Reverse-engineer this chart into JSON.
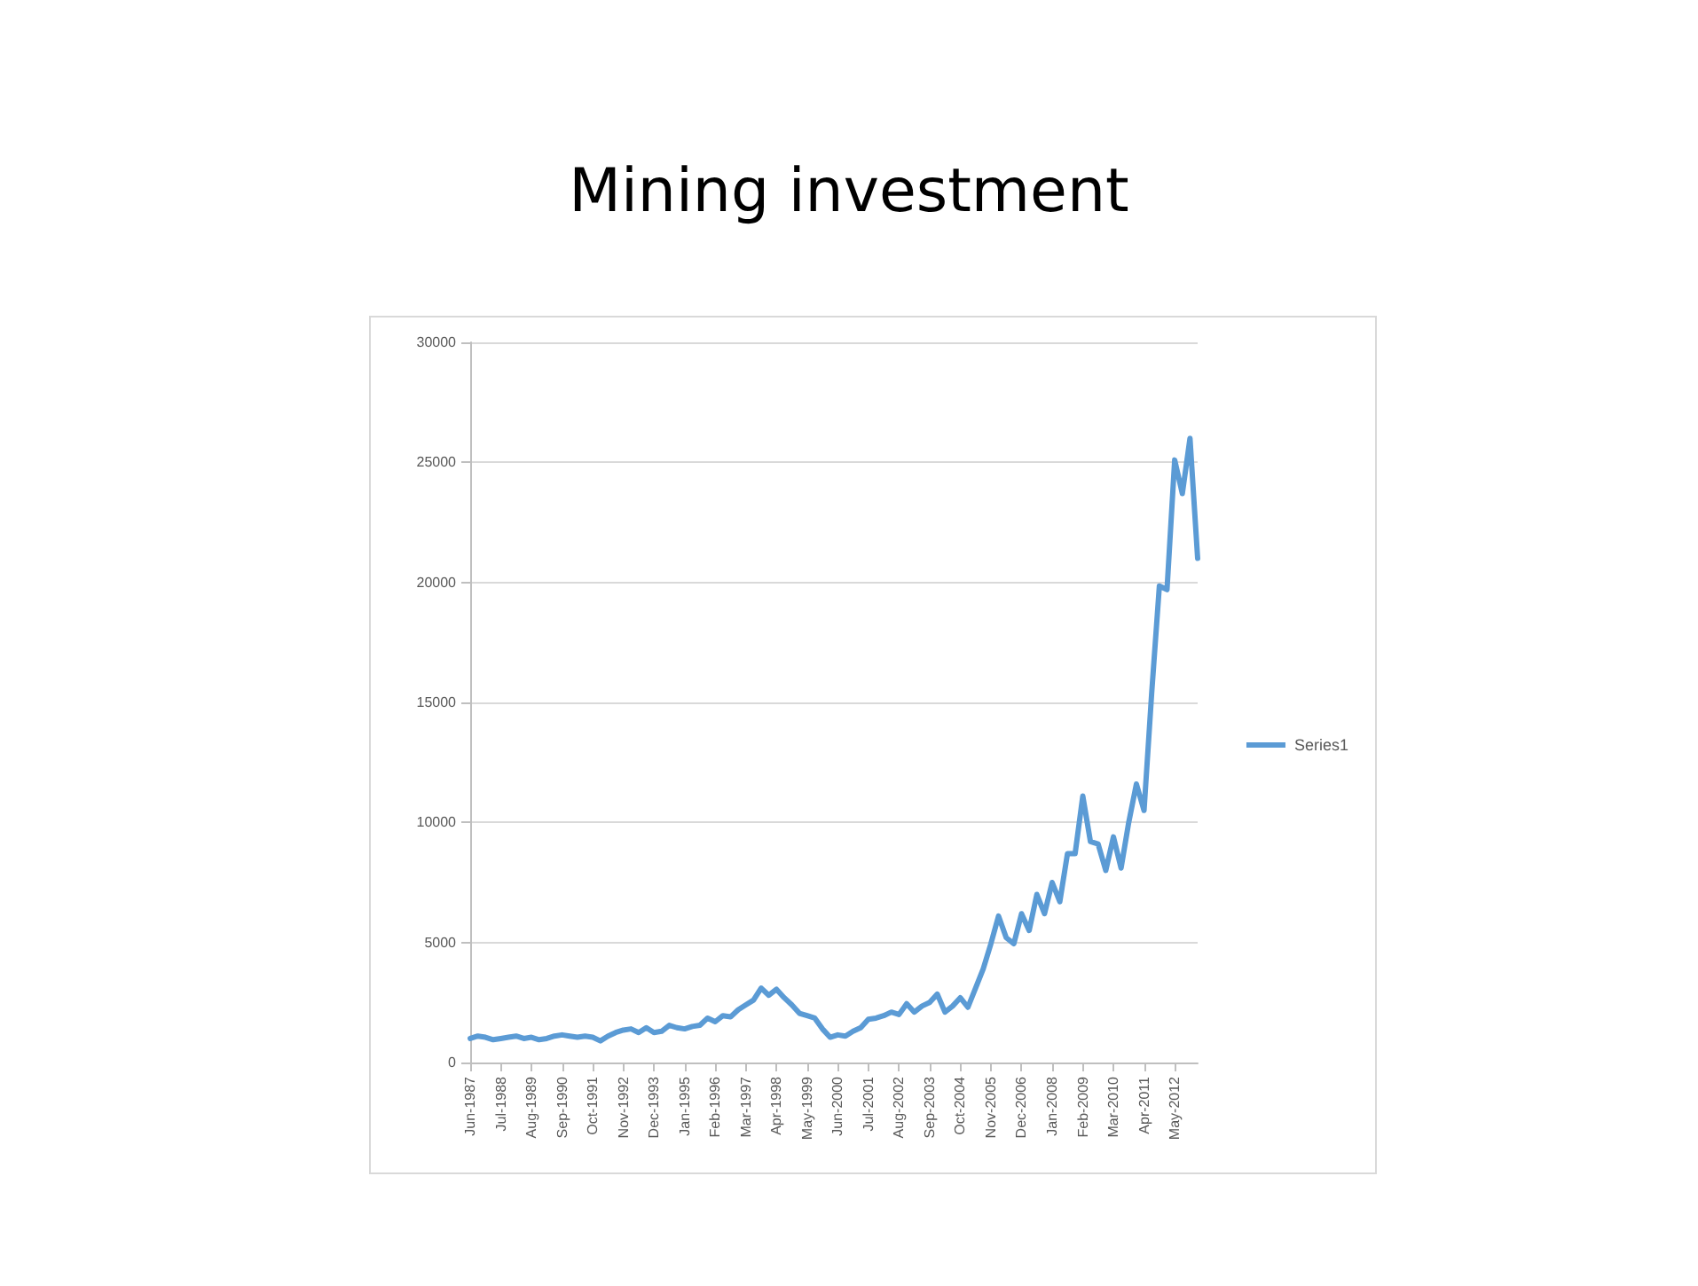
{
  "chart_data": {
    "type": "line",
    "title": "Mining investment",
    "categories": [
      "Jun-1987",
      null,
      null,
      null,
      "Jul-1988",
      null,
      null,
      null,
      "Aug-1989",
      null,
      null,
      null,
      "Sep-1990",
      null,
      null,
      null,
      "Oct-1991",
      null,
      null,
      null,
      "Nov-1992",
      null,
      null,
      null,
      "Dec-1993",
      null,
      null,
      null,
      "Jan-1995",
      null,
      null,
      null,
      "Feb-1996",
      null,
      null,
      null,
      "Mar-1997",
      null,
      null,
      null,
      "Apr-1998",
      null,
      null,
      null,
      "May-1999",
      null,
      null,
      null,
      "Jun-2000",
      null,
      null,
      null,
      "Jul-2001",
      null,
      null,
      null,
      "Aug-2002",
      null,
      null,
      null,
      "Sep-2003",
      null,
      null,
      null,
      "Oct-2004",
      null,
      null,
      null,
      "Nov-2005",
      null,
      null,
      null,
      "Dec-2006",
      null,
      null,
      null,
      "Jan-2008",
      null,
      null,
      null,
      "Feb-2009",
      null,
      null,
      null,
      "Mar-2010",
      null,
      null,
      null,
      "Apr-2011",
      null,
      null,
      null,
      "May-2012",
      null,
      null,
      null
    ],
    "series": [
      {
        "name": "Series1",
        "color": "#5b9bd5",
        "values": [
          1000,
          1100,
          1050,
          950,
          1000,
          1050,
          1100,
          1000,
          1050,
          950,
          1000,
          1100,
          1150,
          1100,
          1050,
          1100,
          1050,
          900,
          1100,
          1250,
          1350,
          1400,
          1250,
          1450,
          1250,
          1300,
          1550,
          1450,
          1400,
          1500,
          1550,
          1850,
          1700,
          1950,
          1900,
          2200,
          2400,
          2600,
          3100,
          2800,
          3050,
          2700,
          2400,
          2050,
          1950,
          1850,
          1400,
          1050,
          1150,
          1100,
          1300,
          1450,
          1800,
          1850,
          1950,
          2100,
          2000,
          2450,
          2100,
          2350,
          2500,
          2850,
          2100,
          2350,
          2700,
          2300,
          3100,
          3900,
          4950,
          6100,
          5200,
          4950,
          6200,
          5500,
          7000,
          6200,
          7500,
          6700,
          8700,
          8700,
          11100,
          9200,
          9100,
          8000,
          9400,
          8100,
          10000,
          11600,
          10500,
          15400,
          19850,
          19700,
          25100,
          23700,
          26000,
          21000
        ]
      }
    ],
    "ylim": [
      0,
      30000
    ],
    "yticks": [
      0,
      5000,
      10000,
      15000,
      20000,
      25000,
      30000
    ],
    "grid": "y",
    "legend": "right",
    "marker": "none"
  }
}
